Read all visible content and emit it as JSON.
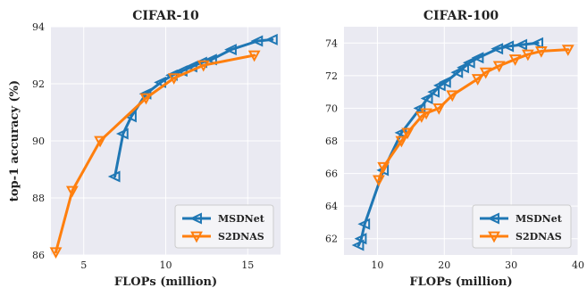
{
  "chart_data": [
    {
      "type": "line",
      "title": "CIFAR-10",
      "xlabel": "FLOPs (million)",
      "ylabel": "top-1 accuracy (%)",
      "xlim": [
        3,
        17
      ],
      "ylim": [
        86,
        94
      ],
      "xticks": [
        5,
        10,
        15
      ],
      "yticks": [
        86,
        88,
        90,
        92,
        94
      ],
      "grid": true,
      "legend": "bottom-right",
      "series": [
        {
          "name": "MSDNet",
          "color": "#1f77b4",
          "marker": "triangle-left",
          "x": [
            6.9,
            7.4,
            7.9,
            8.8,
            9.7,
            10.4,
            11.0,
            11.6,
            12.2,
            12.8,
            14.0,
            15.6,
            16.5
          ],
          "y": [
            88.75,
            90.25,
            90.85,
            91.65,
            92.05,
            92.3,
            92.45,
            92.6,
            92.75,
            92.85,
            93.2,
            93.5,
            93.55
          ]
        },
        {
          "name": "S2DNAS",
          "color": "#ff7f0e",
          "marker": "triangle-down",
          "x": [
            3.3,
            4.3,
            6.0,
            8.8,
            10.5,
            12.3,
            15.4
          ],
          "y": [
            86.1,
            88.25,
            90.0,
            91.5,
            92.2,
            92.65,
            93.0
          ]
        }
      ]
    },
    {
      "type": "line",
      "title": "CIFAR-100",
      "xlabel": "FLOPs (million)",
      "ylabel": "",
      "xlim": [
        5,
        40
      ],
      "ylim": [
        61,
        75
      ],
      "xticks": [
        10,
        20,
        30,
        40
      ],
      "yticks": [
        62,
        64,
        66,
        68,
        70,
        72,
        74
      ],
      "grid": true,
      "legend": "bottom-right",
      "series": [
        {
          "name": "MSDNet",
          "color": "#1f77b4",
          "marker": "triangle-left",
          "x": [
            7.2,
            7.6,
            8.1,
            10.9,
            13.6,
            16.4,
            17.5,
            18.5,
            19.4,
            20.2,
            22.0,
            22.9,
            23.8,
            25.1,
            28.0,
            29.6,
            31.6,
            34.0
          ],
          "y": [
            61.6,
            62.0,
            62.9,
            66.2,
            68.5,
            70.0,
            70.6,
            71.0,
            71.4,
            71.6,
            72.2,
            72.5,
            72.8,
            73.1,
            73.65,
            73.8,
            73.9,
            74.0
          ]
        },
        {
          "name": "S2DNAS",
          "color": "#ff7f0e",
          "marker": "triangle-down",
          "x": [
            10.2,
            10.9,
            13.6,
            14.5,
            16.6,
            17.3,
            19.2,
            21.2,
            25.0,
            26.2,
            28.2,
            30.6,
            32.5,
            34.5,
            38.5
          ],
          "y": [
            65.6,
            66.4,
            68.0,
            68.5,
            69.5,
            69.7,
            70.0,
            70.8,
            71.8,
            72.2,
            72.6,
            73.0,
            73.3,
            73.5,
            73.6
          ]
        }
      ]
    }
  ]
}
